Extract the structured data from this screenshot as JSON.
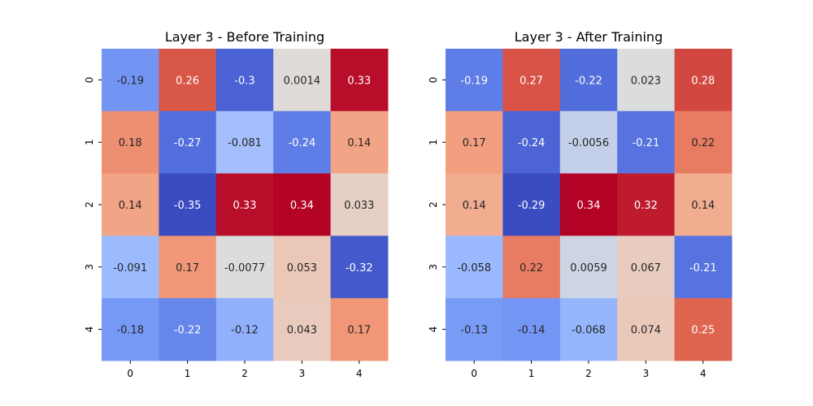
{
  "chart_data": [
    {
      "type": "heatmap",
      "title": "Layer 3 - Before Training",
      "xlabel": "",
      "ylabel": "",
      "x_categories": [
        "0",
        "1",
        "2",
        "3",
        "4"
      ],
      "y_categories": [
        "0",
        "1",
        "2",
        "3",
        "4"
      ],
      "values": [
        [
          -0.19,
          0.26,
          -0.3,
          0.0014,
          0.33
        ],
        [
          0.18,
          -0.27,
          -0.081,
          -0.24,
          0.14
        ],
        [
          0.14,
          -0.35,
          0.33,
          0.34,
          0.033
        ],
        [
          -0.091,
          0.17,
          -0.0077,
          0.053,
          -0.32
        ],
        [
          -0.18,
          -0.22,
          -0.12,
          0.043,
          0.17
        ]
      ],
      "labels": [
        [
          "-0.19",
          "0.26",
          "-0.3",
          "0.0014",
          "0.33"
        ],
        [
          "0.18",
          "-0.27",
          "-0.081",
          "-0.24",
          "0.14"
        ],
        [
          "0.14",
          "-0.35",
          "0.33",
          "0.34",
          "0.033"
        ],
        [
          "-0.091",
          "0.17",
          "-0.0077",
          "0.053",
          "-0.32"
        ],
        [
          "-0.18",
          "-0.22",
          "-0.12",
          "0.043",
          "0.17"
        ]
      ],
      "colormap": "coolwarm",
      "vmin": -0.35,
      "vmax": 0.34,
      "colorbar": false
    },
    {
      "type": "heatmap",
      "title": "Layer 3 - After Training",
      "xlabel": "",
      "ylabel": "",
      "x_categories": [
        "0",
        "1",
        "2",
        "3",
        "4"
      ],
      "y_categories": [
        "0",
        "1",
        "2",
        "3",
        "4"
      ],
      "values": [
        [
          -0.19,
          0.27,
          -0.22,
          0.023,
          0.28
        ],
        [
          0.17,
          -0.24,
          -0.0056,
          -0.21,
          0.22
        ],
        [
          0.14,
          -0.29,
          0.34,
          0.32,
          0.14
        ],
        [
          -0.058,
          0.22,
          0.0059,
          0.067,
          -0.21
        ],
        [
          -0.13,
          -0.14,
          -0.068,
          0.074,
          0.25
        ]
      ],
      "labels": [
        [
          "-0.19",
          "0.27",
          "-0.22",
          "0.023",
          "0.28"
        ],
        [
          "0.17",
          "-0.24",
          "-0.0056",
          "-0.21",
          "0.22"
        ],
        [
          "0.14",
          "-0.29",
          "0.34",
          "0.32",
          "0.14"
        ],
        [
          "-0.058",
          "0.22",
          "0.0059",
          "0.067",
          "-0.21"
        ],
        [
          "-0.13",
          "-0.14",
          "-0.068",
          "0.074",
          "0.25"
        ]
      ],
      "colormap": "coolwarm",
      "vmin": -0.29,
      "vmax": 0.34,
      "colorbar": false
    }
  ]
}
